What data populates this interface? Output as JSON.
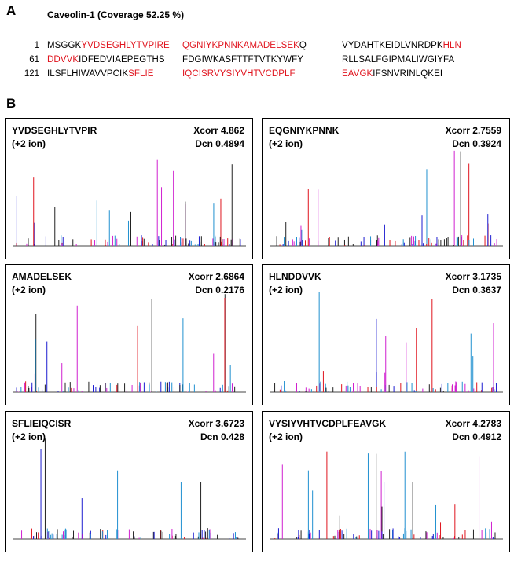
{
  "panel_a": {
    "label": "A",
    "title": "Caveolin-1 (Coverage 52.25 %)",
    "sequence": [
      {
        "start": "1",
        "blocks": [
          [
            {
              "text": "MSGGK",
              "covered": false
            },
            {
              "text": "YVDSEGHLYTVPIRE",
              "covered": true
            }
          ],
          [
            {
              "text": "QGNIYKPNNKAMADELSEK",
              "covered": true
            },
            {
              "text": "Q",
              "covered": false
            }
          ],
          [
            {
              "text": "VYDAHTKEIDLVNRDPK",
              "covered": false
            },
            {
              "text": "HLN",
              "covered": true
            }
          ]
        ]
      },
      {
        "start": "61",
        "blocks": [
          [
            {
              "text": "DDVVK",
              "covered": true
            },
            {
              "text": "IDFEDVIAEPEGTHS",
              "covered": false
            }
          ],
          [
            {
              "text": "FDGIWKASFTTFTVTKYWFY",
              "covered": false
            }
          ],
          [
            {
              "text": "RLLSALFGIPMALIWGIYFA",
              "covered": false
            }
          ]
        ]
      },
      {
        "start": "121",
        "blocks": [
          [
            {
              "text": "ILSFLHIWAVVPCIK",
              "covered": false
            },
            {
              "text": "SFLIE",
              "covered": true
            }
          ],
          [
            {
              "text": "IQCISRVYSIYVHTVCDPLF",
              "covered": true
            }
          ],
          [
            {
              "text": "EAVGK",
              "covered": true
            },
            {
              "text": "IFSNVRINLQKEI",
              "covered": false
            }
          ]
        ]
      }
    ]
  },
  "panel_b": {
    "label": "B",
    "spectra": [
      {
        "peptide": "YVDSEGHLYTVPIR",
        "ion": "(+2 ion)",
        "xcorr": "Xcorr 4.862",
        "dcn": "Dcn 0.4894"
      },
      {
        "peptide": "EQGNIYKPNNK",
        "ion": "(+2 ion)",
        "xcorr": "Xcorr 2.7559",
        "dcn": "Dcn 0.3924"
      },
      {
        "peptide": "AMADELSEK",
        "ion": "(+2 ion)",
        "xcorr": "Xcorr 2.6864",
        "dcn": "Dcn 0.2176"
      },
      {
        "peptide": "HLNDDVVK",
        "ion": "(+2 ion)",
        "xcorr": "Xcorr 3.1735",
        "dcn": "Dcn 0.3637"
      },
      {
        "peptide": "SFLIEIQCISR",
        "ion": "(+2 ion)",
        "xcorr": "Xcorr 3.6723",
        "dcn": "Dcn 0.428"
      },
      {
        "peptide": "VYSIYVHTVCDPLFEAVGK",
        "ion": "(+2 ion)",
        "xcorr": "Xcorr 4.2783",
        "dcn": "Dcn 0.4912"
      }
    ]
  }
}
